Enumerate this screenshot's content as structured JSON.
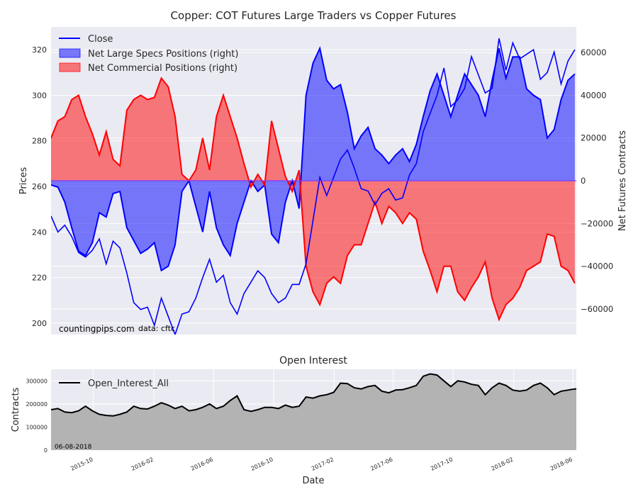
{
  "chart_data": [
    {
      "type": "line",
      "title": "Copper: COT Futures Large Traders vs Copper Futures",
      "ylabel_left": "Prices",
      "ylabel_right": "Net Futures Contracts",
      "ylim_left": [
        195,
        330
      ],
      "ylim_right": [
        -72000,
        72000
      ],
      "yticks_left": [
        200,
        220,
        240,
        260,
        280,
        300,
        320
      ],
      "yticks_right": [
        -60000,
        -40000,
        -20000,
        0,
        20000,
        40000,
        60000
      ],
      "ytick_labels_right": [
        "−60000",
        "−40000",
        "−20000",
        "0",
        "20000",
        "40000",
        "60000"
      ],
      "xlim": [
        "2015-07-07",
        "2018-06-08"
      ],
      "legend_position": "top-left",
      "grid": true,
      "annotations": [
        "countingpips.com",
        "data: cftc"
      ],
      "series": [
        {
          "name": "Close",
          "axis": "left",
          "style": "line",
          "color": "#0000ff",
          "x": [
            "2015-07-07",
            "2015-07-21",
            "2015-08-04",
            "2015-08-18",
            "2015-09-01",
            "2015-09-15",
            "2015-09-29",
            "2015-10-13",
            "2015-10-27",
            "2015-11-10",
            "2015-11-24",
            "2015-12-08",
            "2015-12-22",
            "2016-01-05",
            "2016-01-19",
            "2016-02-02",
            "2016-02-16",
            "2016-03-01",
            "2016-03-15",
            "2016-03-29",
            "2016-04-12",
            "2016-04-26",
            "2016-05-10",
            "2016-05-24",
            "2016-06-07",
            "2016-06-21",
            "2016-07-05",
            "2016-07-19",
            "2016-08-02",
            "2016-08-16",
            "2016-08-30",
            "2016-09-13",
            "2016-09-27",
            "2016-10-11",
            "2016-10-25",
            "2016-11-08",
            "2016-11-22",
            "2016-12-06",
            "2016-12-20",
            "2017-01-03",
            "2017-01-17",
            "2017-01-31",
            "2017-02-14",
            "2017-02-28",
            "2017-03-14",
            "2017-03-28",
            "2017-04-11",
            "2017-04-25",
            "2017-05-09",
            "2017-05-23",
            "2017-06-06",
            "2017-06-20",
            "2017-07-04",
            "2017-07-18",
            "2017-08-01",
            "2017-08-15",
            "2017-08-29",
            "2017-09-12",
            "2017-09-26",
            "2017-10-10",
            "2017-10-24",
            "2017-11-07",
            "2017-11-21",
            "2017-12-05",
            "2017-12-19",
            "2018-01-02",
            "2018-01-16",
            "2018-01-30",
            "2018-02-13",
            "2018-02-27",
            "2018-03-13",
            "2018-03-27",
            "2018-04-10",
            "2018-04-24",
            "2018-05-08",
            "2018-05-22",
            "2018-06-05"
          ],
          "values": [
            247,
            240,
            243,
            238,
            231,
            229,
            232,
            237,
            226,
            236,
            233,
            222,
            209,
            206,
            207,
            199,
            211,
            203,
            195,
            204,
            205,
            211,
            220,
            228,
            218,
            221,
            209,
            204,
            213,
            218,
            223,
            220,
            213,
            209,
            211,
            217,
            217,
            226,
            245,
            264,
            256,
            264,
            272,
            276,
            268,
            259,
            258,
            252,
            257,
            259,
            254,
            255,
            265,
            270,
            284,
            292,
            300,
            312,
            295,
            298,
            303,
            317,
            309,
            301,
            303,
            325,
            311,
            323,
            316,
            318,
            320,
            307,
            310,
            319,
            305,
            315,
            320
          ]
        },
        {
          "name": "Net Large Specs Positions (right)",
          "axis": "right",
          "style": "area",
          "color": "#0000ff",
          "x": [
            "2015-07-07",
            "2015-07-21",
            "2015-08-04",
            "2015-08-18",
            "2015-09-01",
            "2015-09-15",
            "2015-09-29",
            "2015-10-13",
            "2015-10-27",
            "2015-11-10",
            "2015-11-24",
            "2015-12-08",
            "2015-12-22",
            "2016-01-05",
            "2016-01-19",
            "2016-02-02",
            "2016-02-16",
            "2016-03-01",
            "2016-03-15",
            "2016-03-29",
            "2016-04-12",
            "2016-04-26",
            "2016-05-10",
            "2016-05-24",
            "2016-06-07",
            "2016-06-21",
            "2016-07-05",
            "2016-07-19",
            "2016-08-02",
            "2016-08-16",
            "2016-08-30",
            "2016-09-13",
            "2016-09-27",
            "2016-10-11",
            "2016-10-25",
            "2016-11-08",
            "2016-11-22",
            "2016-12-06",
            "2016-12-20",
            "2017-01-03",
            "2017-01-17",
            "2017-01-31",
            "2017-02-14",
            "2017-02-28",
            "2017-03-14",
            "2017-03-28",
            "2017-04-11",
            "2017-04-25",
            "2017-05-09",
            "2017-05-23",
            "2017-06-06",
            "2017-06-20",
            "2017-07-04",
            "2017-07-18",
            "2017-08-01",
            "2017-08-15",
            "2017-08-29",
            "2017-09-12",
            "2017-09-26",
            "2017-10-10",
            "2017-10-24",
            "2017-11-07",
            "2017-11-21",
            "2017-12-05",
            "2017-12-19",
            "2018-01-02",
            "2018-01-16",
            "2018-01-30",
            "2018-02-13",
            "2018-02-27",
            "2018-03-13",
            "2018-03-27",
            "2018-04-10",
            "2018-04-24",
            "2018-05-08",
            "2018-05-22",
            "2018-06-05"
          ],
          "values": [
            -2000,
            -3000,
            -10000,
            -22000,
            -33000,
            -35000,
            -29000,
            -15000,
            -17000,
            -6000,
            -5000,
            -22000,
            -28000,
            -34000,
            -32000,
            -29000,
            -42000,
            -40000,
            -30000,
            -5000,
            0,
            -12000,
            -24000,
            -5000,
            -22000,
            -30000,
            -35000,
            -20000,
            -10000,
            0,
            -5000,
            -2000,
            -25000,
            -29000,
            -10000,
            0,
            -13000,
            40000,
            55000,
            62000,
            47000,
            43000,
            45000,
            32000,
            15000,
            21000,
            25000,
            15000,
            12000,
            8000,
            12000,
            15000,
            9000,
            17000,
            30000,
            42000,
            50000,
            40000,
            30000,
            40000,
            50000,
            45000,
            40000,
            30000,
            47000,
            62000,
            48000,
            58000,
            58000,
            43000,
            40000,
            38000,
            20000,
            24000,
            38000,
            47000,
            50000
          ]
        },
        {
          "name": "Net Commercial Positions (right)",
          "axis": "right",
          "style": "area",
          "color": "#ff0000",
          "x": [
            "2015-07-07",
            "2015-07-21",
            "2015-08-04",
            "2015-08-18",
            "2015-09-01",
            "2015-09-15",
            "2015-09-29",
            "2015-10-13",
            "2015-10-27",
            "2015-11-10",
            "2015-11-24",
            "2015-12-08",
            "2015-12-22",
            "2016-01-05",
            "2016-01-19",
            "2016-02-02",
            "2016-02-16",
            "2016-03-01",
            "2016-03-15",
            "2016-03-29",
            "2016-04-12",
            "2016-04-26",
            "2016-05-10",
            "2016-05-24",
            "2016-06-07",
            "2016-06-21",
            "2016-07-05",
            "2016-07-19",
            "2016-08-02",
            "2016-08-16",
            "2016-08-30",
            "2016-09-13",
            "2016-09-27",
            "2016-10-11",
            "2016-10-25",
            "2016-11-08",
            "2016-11-22",
            "2016-12-06",
            "2016-12-20",
            "2017-01-03",
            "2017-01-17",
            "2017-01-31",
            "2017-02-14",
            "2017-02-28",
            "2017-03-14",
            "2017-03-28",
            "2017-04-11",
            "2017-04-25",
            "2017-05-09",
            "2017-05-23",
            "2017-06-06",
            "2017-06-20",
            "2017-07-04",
            "2017-07-18",
            "2017-08-01",
            "2017-08-15",
            "2017-08-29",
            "2017-09-12",
            "2017-09-26",
            "2017-10-10",
            "2017-10-24",
            "2017-11-07",
            "2017-11-21",
            "2017-12-05",
            "2017-12-19",
            "2018-01-02",
            "2018-01-16",
            "2018-01-30",
            "2018-02-13",
            "2018-02-27",
            "2018-03-13",
            "2018-03-27",
            "2018-04-10",
            "2018-04-24",
            "2018-05-08",
            "2018-05-22",
            "2018-06-05"
          ],
          "values": [
            20000,
            28000,
            30000,
            38000,
            40000,
            30000,
            22000,
            12000,
            23000,
            10000,
            7000,
            33000,
            38000,
            40000,
            38000,
            39000,
            48000,
            44000,
            30000,
            3000,
            0,
            5000,
            20000,
            5000,
            30000,
            40000,
            30000,
            20000,
            8000,
            -3000,
            3000,
            -2000,
            28000,
            15000,
            2000,
            -5000,
            5000,
            -40000,
            -52000,
            -58000,
            -48000,
            -45000,
            -48000,
            -35000,
            -30000,
            -30000,
            -20000,
            -10000,
            -20000,
            -12000,
            -15000,
            -20000,
            -15000,
            -18000,
            -33000,
            -42000,
            -52000,
            -40000,
            -40000,
            -52000,
            -56000,
            -50000,
            -45000,
            -38000,
            -55000,
            -65000,
            -58000,
            -55000,
            -50000,
            -42000,
            -40000,
            -38000,
            -25000,
            -26000,
            -40000,
            -42000,
            -48000
          ]
        }
      ]
    },
    {
      "type": "area",
      "title": "Open Interest",
      "xlabel": "Date",
      "ylabel": "Contracts",
      "ylim": [
        0,
        350000
      ],
      "yticks": [
        0,
        100000,
        200000,
        300000
      ],
      "ytick_labels": [
        "0",
        "100000",
        "200000",
        "300000"
      ],
      "xlim": [
        "2015-07-07",
        "2018-06-08"
      ],
      "xticks": [
        "2015-10-01",
        "2016-02-01",
        "2016-06-01",
        "2016-10-01",
        "2017-02-01",
        "2017-06-01",
        "2017-10-01",
        "2018-02-01",
        "2018-06-01"
      ],
      "xtick_labels": [
        "2015-10",
        "2016-02",
        "2016-06",
        "2016-10",
        "2017-02",
        "2017-06",
        "2017-10",
        "2018-02",
        "2018-06"
      ],
      "legend_position": "top-left",
      "grid": true,
      "annotation": "06-08-2018",
      "series": [
        {
          "name": "Open_Interest_All",
          "color": "#000000",
          "fill": "#b3b3b3",
          "x": [
            "2015-07-07",
            "2015-07-21",
            "2015-08-04",
            "2015-08-18",
            "2015-09-01",
            "2015-09-15",
            "2015-09-29",
            "2015-10-13",
            "2015-10-27",
            "2015-11-10",
            "2015-11-24",
            "2015-12-08",
            "2015-12-22",
            "2016-01-05",
            "2016-01-19",
            "2016-02-02",
            "2016-02-16",
            "2016-03-01",
            "2016-03-15",
            "2016-03-29",
            "2016-04-12",
            "2016-04-26",
            "2016-05-10",
            "2016-05-24",
            "2016-06-07",
            "2016-06-21",
            "2016-07-05",
            "2016-07-19",
            "2016-08-02",
            "2016-08-16",
            "2016-08-30",
            "2016-09-13",
            "2016-09-27",
            "2016-10-11",
            "2016-10-25",
            "2016-11-08",
            "2016-11-22",
            "2016-12-06",
            "2016-12-20",
            "2017-01-03",
            "2017-01-17",
            "2017-01-31",
            "2017-02-14",
            "2017-02-28",
            "2017-03-14",
            "2017-03-28",
            "2017-04-11",
            "2017-04-25",
            "2017-05-09",
            "2017-05-23",
            "2017-06-06",
            "2017-06-20",
            "2017-07-04",
            "2017-07-18",
            "2017-08-01",
            "2017-08-15",
            "2017-08-29",
            "2017-09-12",
            "2017-09-26",
            "2017-10-10",
            "2017-10-24",
            "2017-11-07",
            "2017-11-21",
            "2017-12-05",
            "2017-12-19",
            "2018-01-02",
            "2018-01-16",
            "2018-01-30",
            "2018-02-13",
            "2018-02-27",
            "2018-03-13",
            "2018-03-27",
            "2018-04-10",
            "2018-04-24",
            "2018-05-08",
            "2018-05-22",
            "2018-06-05"
          ],
          "values": [
            175000,
            180000,
            165000,
            162000,
            170000,
            190000,
            170000,
            155000,
            150000,
            148000,
            155000,
            165000,
            190000,
            180000,
            178000,
            190000,
            205000,
            195000,
            180000,
            190000,
            170000,
            175000,
            185000,
            200000,
            180000,
            190000,
            215000,
            235000,
            175000,
            168000,
            175000,
            185000,
            185000,
            180000,
            195000,
            185000,
            190000,
            230000,
            225000,
            235000,
            240000,
            250000,
            290000,
            288000,
            270000,
            265000,
            275000,
            280000,
            255000,
            248000,
            260000,
            262000,
            270000,
            280000,
            320000,
            330000,
            325000,
            300000,
            275000,
            300000,
            295000,
            285000,
            280000,
            240000,
            270000,
            290000,
            280000,
            260000,
            255000,
            260000,
            280000,
            290000,
            270000,
            240000,
            255000,
            260000,
            265000
          ]
        }
      ]
    }
  ]
}
